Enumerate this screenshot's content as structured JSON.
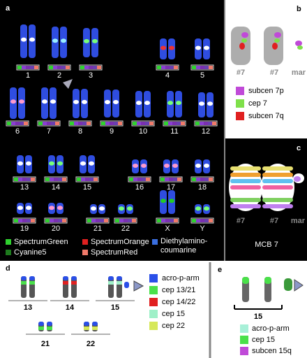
{
  "panel_a": {
    "label": "a",
    "chromosomes": [
      "1",
      "2",
      "3",
      "4",
      "5",
      "6",
      "7",
      "8",
      "9",
      "10",
      "11",
      "12",
      "13",
      "14",
      "15",
      "16",
      "17",
      "18",
      "19",
      "20",
      "21",
      "22",
      "X",
      "Y"
    ],
    "legend": [
      {
        "name": "SpectrumGreen",
        "color": "#2fd12f"
      },
      {
        "name": "SpectrumOrange",
        "color": "#e02020"
      },
      {
        "name": "Diethylamino-coumarine",
        "color": "#3a6fe0"
      },
      {
        "name": "Cyanine5",
        "color": "#1d7a1d"
      },
      {
        "name": "SpectrumRed",
        "color": "#f07a6a"
      }
    ]
  },
  "panel_b": {
    "label": "b",
    "chromosome_labels": [
      "#7",
      "#7",
      "mar"
    ],
    "legend": [
      {
        "name": "subcen 7p",
        "color": "#c04ad8"
      },
      {
        "name": "cep 7",
        "color": "#7fe04a"
      },
      {
        "name": "subcen 7q",
        "color": "#e02020"
      }
    ]
  },
  "panel_c": {
    "label": "c",
    "chromosome_labels": [
      "#7",
      "#7",
      "mar"
    ],
    "title": "MCB 7"
  },
  "panel_d": {
    "label": "d",
    "groups": [
      "13",
      "14",
      "15",
      "21",
      "22"
    ],
    "legend": [
      {
        "name": "acro-p-arm",
        "color": "#2a4fe8"
      },
      {
        "name": "cep 13/21",
        "color": "#4ae04a"
      },
      {
        "name": "cep 14/22",
        "color": "#e02020"
      },
      {
        "name": "cep 15",
        "color": "#9ff0c8"
      },
      {
        "name": "cep 22",
        "color": "#d6e85a"
      }
    ]
  },
  "panel_e": {
    "label": "e",
    "group": "15",
    "legend": [
      {
        "name": "acro-p-arm",
        "color": "#a8f0d8"
      },
      {
        "name": "cep 15",
        "color": "#4ae04a"
      },
      {
        "name": "subcen 15q",
        "color": "#c04ad8"
      }
    ]
  }
}
